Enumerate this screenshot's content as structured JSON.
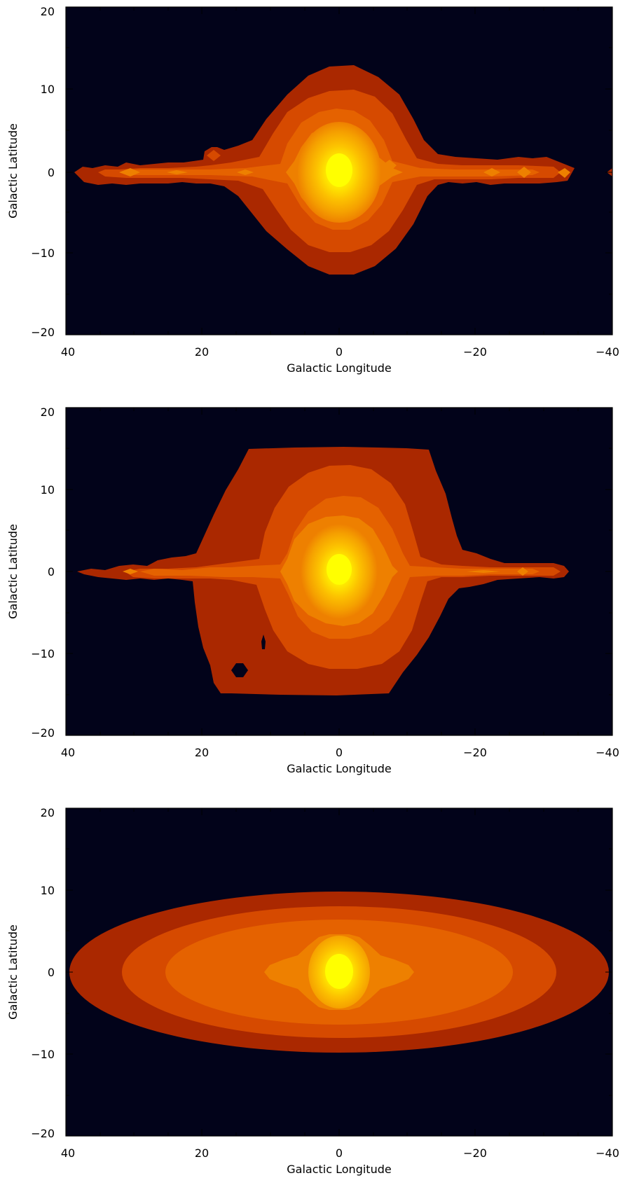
{
  "chart_data": [
    {
      "type": "heatmap",
      "panel": "top",
      "xlabel": "Galactic Longitude",
      "ylabel": "Galactic Latitude",
      "xlim": [
        40,
        -40
      ],
      "ylim": [
        -20,
        20
      ],
      "xticks": [
        40,
        20,
        0,
        -20,
        -40
      ],
      "yticks": [
        -20,
        -10,
        0,
        10,
        20
      ],
      "xtick_labels": [
        "40",
        "20",
        "0",
        "−20",
        "−40"
      ],
      "ytick_labels": [
        "−20",
        "−10",
        "0",
        "10",
        "20"
      ],
      "background": "#02031a",
      "colormap": [
        "#aa2800",
        "#d64a00",
        "#e56200",
        "#ee8000",
        "#f5a000",
        "#fcc000",
        "#ffff00"
      ],
      "contours": [
        {
          "level": 1,
          "color": "#aa2800",
          "region": "bulge",
          "lat_extent": [
            -12.8,
            13.0
          ],
          "lon_extent": [
            -12.5,
            11.5
          ],
          "description_shape": "rounded bulge plus thin disk",
          "disk_lon_extent": [
            -34,
            38
          ],
          "disk_half_width": 1.2
        },
        {
          "level": 2,
          "color": "#d64a00",
          "lat_extent": [
            -9.8,
            10.2
          ],
          "lon_extent": [
            -10,
            9.5
          ]
        },
        {
          "level": 3,
          "color": "#e56200",
          "lat_extent": [
            -8.3,
            8.3
          ],
          "lon_extent": [
            -8,
            8
          ]
        },
        {
          "level": 4,
          "color": "#ee8000",
          "lat_extent": [
            -6.3,
            6.3
          ],
          "lon_extent": [
            -6.5,
            6.5
          ]
        },
        {
          "level": 5,
          "color": "#f5a000",
          "lat_extent": [
            -4,
            4
          ],
          "lon_extent": [
            -4,
            4
          ]
        },
        {
          "level": 6,
          "color": "#ffff00",
          "lat_extent": [
            -1.8,
            1.8
          ],
          "lon_extent": [
            -2,
            2
          ]
        }
      ]
    },
    {
      "type": "heatmap",
      "panel": "middle",
      "xlabel": "Galactic Longitude",
      "ylabel": "Galactic Latitude",
      "xlim": [
        40,
        -40
      ],
      "ylim": [
        -20,
        20
      ],
      "xticks": [
        40,
        20,
        0,
        -20,
        -40
      ],
      "yticks": [
        -20,
        -10,
        0,
        10,
        20
      ],
      "xtick_labels": [
        "40",
        "20",
        "0",
        "−20",
        "−40"
      ],
      "ytick_labels": [
        "−20",
        "−10",
        "0",
        "10",
        "20"
      ],
      "background": "#02031a",
      "colormap": [
        "#aa2800",
        "#d64a00",
        "#e56200",
        "#ee8000",
        "#f5a000",
        "#ffff00"
      ],
      "contours": [
        {
          "level": 1,
          "color": "#aa2800",
          "lat_extent": [
            -15.3,
            15.5
          ],
          "lon_extent": [
            -17,
            20
          ]
        },
        {
          "level": 2,
          "color": "#d64a00",
          "lat_extent": [
            -11.5,
            11.8
          ],
          "lon_extent": [
            -11,
            11
          ]
        },
        {
          "level": 3,
          "color": "#e56200",
          "lat_extent": [
            -9.5,
            9.5
          ],
          "lon_extent": [
            -8.5,
            8.5
          ]
        },
        {
          "level": 4,
          "color": "#ee8000",
          "lat_extent": [
            -6.5,
            6.5
          ],
          "lon_extent": [
            -7,
            7
          ]
        },
        {
          "level": 5,
          "color": "#f5a000",
          "lat_extent": [
            -4,
            4
          ],
          "lon_extent": [
            -4,
            4
          ]
        },
        {
          "level": 6,
          "color": "#ffff00",
          "lat_extent": [
            -1.8,
            1.8
          ],
          "lon_extent": [
            -2,
            2
          ]
        }
      ]
    },
    {
      "type": "heatmap",
      "panel": "bottom",
      "xlabel": "Galactic Longitude",
      "ylabel": "Galactic Latitude",
      "xlim": [
        40,
        -40
      ],
      "ylim": [
        -20,
        20
      ],
      "xticks": [
        40,
        20,
        0,
        -20,
        -40
      ],
      "yticks": [
        -20,
        -10,
        0,
        10,
        20
      ],
      "xtick_labels": [
        "40",
        "20",
        "0",
        "−20",
        "−40"
      ],
      "ytick_labels": [
        "−20",
        "−10",
        "0",
        "10",
        "20"
      ],
      "background": "#02031a",
      "colormap": [
        "#aa2800",
        "#d64a00",
        "#e56200",
        "#ee8000",
        "#f5a000",
        "#ffff00"
      ],
      "contours": [
        {
          "level": 1,
          "color": "#aa2800",
          "lon_half_extent": 39.5,
          "lat_half_extent": 9.8
        },
        {
          "level": 2,
          "color": "#d64a00",
          "lon_half_extent": 32,
          "lat_half_extent": 8
        },
        {
          "level": 3,
          "color": "#e56200",
          "lon_half_extent": 25.5,
          "lat_half_extent": 6.4
        },
        {
          "level": 4,
          "color": "#ee8000",
          "lon_half_extent": 11,
          "lat_half_extent": 4.6
        },
        {
          "level": 5,
          "color": "#f5a000",
          "lon_half_extent": 5,
          "lat_half_extent": 4
        },
        {
          "level": 6,
          "color": "#ffff00",
          "lon_half_extent": 2.2,
          "lat_half_extent": 2.2
        }
      ]
    }
  ]
}
